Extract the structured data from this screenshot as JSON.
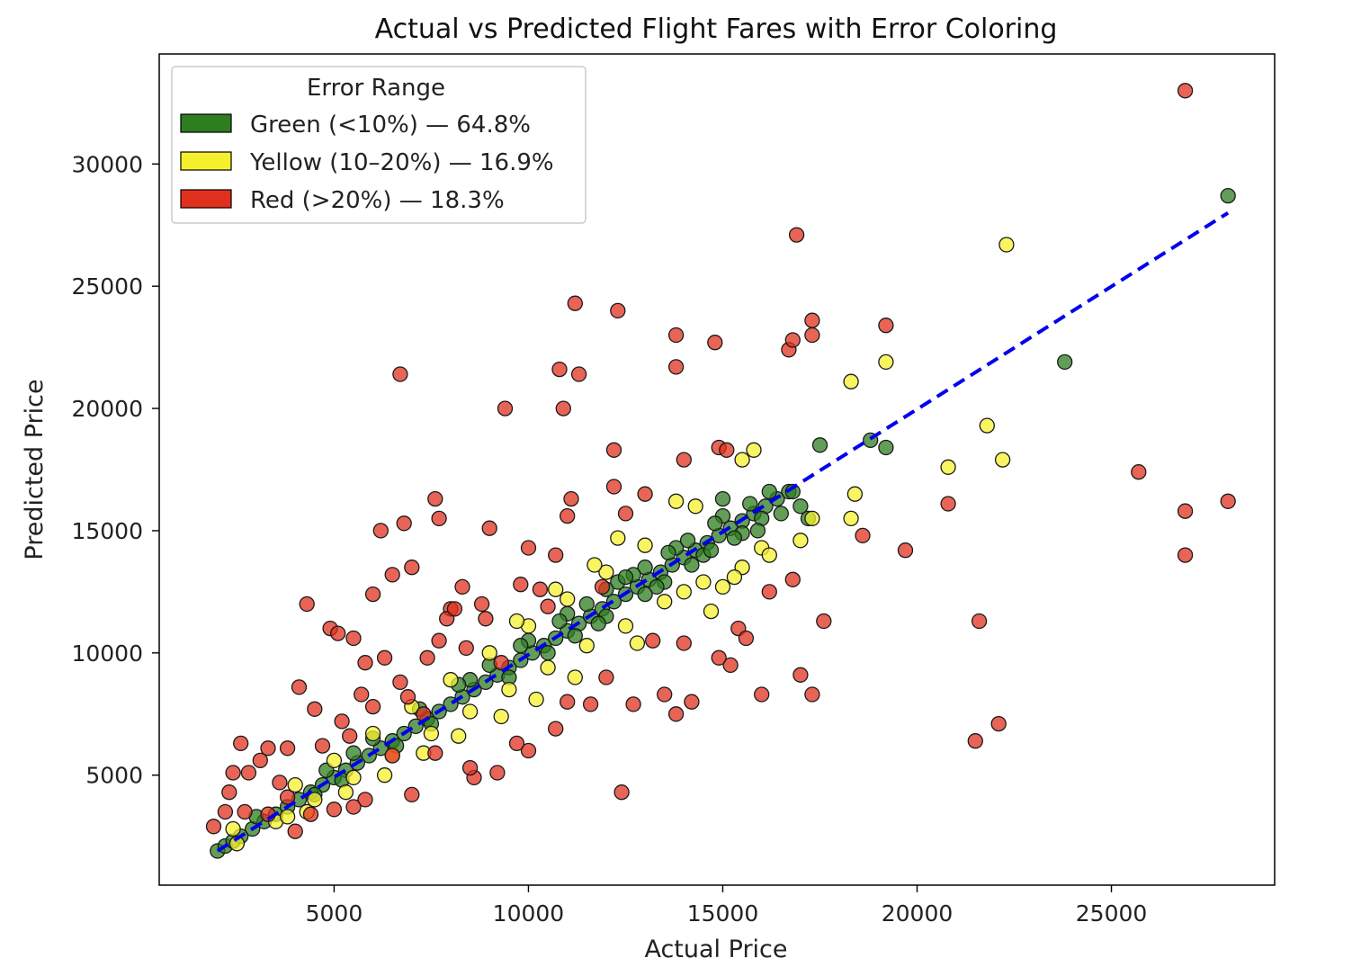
{
  "chart_data": {
    "type": "scatter",
    "title": "Actual vs Predicted Flight Fares with Error Coloring",
    "xlabel": "Actual Price",
    "ylabel": "Predicted Price",
    "xlim": [
      500,
      29200
    ],
    "ylim": [
      500,
      34500
    ],
    "xticks": [
      5000,
      10000,
      15000,
      20000,
      25000
    ],
    "yticks": [
      5000,
      10000,
      15000,
      20000,
      25000,
      30000
    ],
    "xtick_labels": [
      "5000",
      "10000",
      "15000",
      "20000",
      "25000"
    ],
    "ytick_labels": [
      "5000",
      "10000",
      "15000",
      "20000",
      "25000",
      "30000"
    ],
    "grid": false,
    "legend": {
      "title": "Error Range",
      "placement": "top-left",
      "entries": [
        {
          "label": "Green (<10%) — 64.8%",
          "color": "#2e7d1f"
        },
        {
          "label": "Yellow (10–20%) — 16.9%",
          "color": "#f5f02e"
        },
        {
          "label": "Red (>20%) — 18.3%",
          "color": "#e0301e"
        }
      ]
    },
    "reference_line": {
      "style": "dashed",
      "color": "#0000ee",
      "x": [
        2000,
        28000
      ],
      "y": [
        1900,
        28000
      ]
    },
    "series": [
      {
        "name": "Green (<10%) — 64.8%",
        "color": "#2e7d1f",
        "points": [
          [
            2000,
            1900
          ],
          [
            2200,
            2100
          ],
          [
            2400,
            2300
          ],
          [
            2600,
            2500
          ],
          [
            2900,
            2800
          ],
          [
            3200,
            3100
          ],
          [
            3500,
            3400
          ],
          [
            3800,
            3700
          ],
          [
            4100,
            4000
          ],
          [
            4400,
            4300
          ],
          [
            4700,
            4600
          ],
          [
            5000,
            4900
          ],
          [
            5300,
            5200
          ],
          [
            5600,
            5500
          ],
          [
            5900,
            5800
          ],
          [
            6200,
            6100
          ],
          [
            6500,
            6400
          ],
          [
            6800,
            6700
          ],
          [
            7100,
            7000
          ],
          [
            7400,
            7300
          ],
          [
            7700,
            7600
          ],
          [
            8000,
            7900
          ],
          [
            8300,
            8200
          ],
          [
            8600,
            8500
          ],
          [
            8900,
            8800
          ],
          [
            9200,
            9100
          ],
          [
            9500,
            9400
          ],
          [
            9800,
            9700
          ],
          [
            10100,
            10000
          ],
          [
            10400,
            10300
          ],
          [
            10700,
            10600
          ],
          [
            11000,
            10900
          ],
          [
            11300,
            11200
          ],
          [
            11600,
            11500
          ],
          [
            11900,
            11800
          ],
          [
            12200,
            12100
          ],
          [
            12500,
            12400
          ],
          [
            12800,
            12700
          ],
          [
            13100,
            13000
          ],
          [
            13400,
            13300
          ],
          [
            13700,
            13600
          ],
          [
            14000,
            13900
          ],
          [
            14300,
            14200
          ],
          [
            14600,
            14500
          ],
          [
            14900,
            14800
          ],
          [
            15200,
            15100
          ],
          [
            15500,
            15400
          ],
          [
            15800,
            15700
          ],
          [
            16100,
            16000
          ],
          [
            16400,
            16300
          ],
          [
            16700,
            16600
          ],
          [
            3000,
            3300
          ],
          [
            4500,
            4200
          ],
          [
            6000,
            6500
          ],
          [
            7500,
            7100
          ],
          [
            9000,
            9500
          ],
          [
            10500,
            10000
          ],
          [
            11500,
            12000
          ],
          [
            12000,
            11500
          ],
          [
            13000,
            13500
          ],
          [
            13500,
            12900
          ],
          [
            14500,
            14000
          ],
          [
            15000,
            15600
          ],
          [
            15500,
            14900
          ],
          [
            16000,
            15500
          ],
          [
            11000,
            11600
          ],
          [
            12300,
            12900
          ],
          [
            13800,
            14300
          ],
          [
            14200,
            13600
          ],
          [
            10000,
            10500
          ],
          [
            9500,
            9000
          ],
          [
            8500,
            8900
          ],
          [
            12700,
            13200
          ],
          [
            13300,
            12700
          ],
          [
            14800,
            15300
          ],
          [
            15300,
            14700
          ],
          [
            16200,
            16600
          ],
          [
            15700,
            16100
          ],
          [
            12500,
            13100
          ],
          [
            11200,
            10700
          ],
          [
            11800,
            11200
          ],
          [
            13600,
            14100
          ],
          [
            14100,
            14600
          ],
          [
            14700,
            14200
          ],
          [
            16500,
            15700
          ],
          [
            17000,
            16000
          ],
          [
            17200,
            15500
          ],
          [
            15000,
            16300
          ],
          [
            13000,
            12400
          ],
          [
            12000,
            12600
          ],
          [
            10800,
            11300
          ],
          [
            9800,
            10300
          ],
          [
            8200,
            8700
          ],
          [
            7200,
            7700
          ],
          [
            6600,
            6200
          ],
          [
            5500,
            5900
          ],
          [
            5200,
            4800
          ],
          [
            4800,
            5200
          ],
          [
            16800,
            16600
          ],
          [
            15900,
            15000
          ],
          [
            17500,
            18500
          ],
          [
            19200,
            18400
          ],
          [
            18800,
            18700
          ],
          [
            23800,
            21900
          ],
          [
            28000,
            28700
          ]
        ]
      },
      {
        "name": "Yellow (10–20%) — 16.9%",
        "color": "#f5f02e",
        "points": [
          [
            2500,
            2200
          ],
          [
            2400,
            2800
          ],
          [
            3500,
            3100
          ],
          [
            4000,
            4600
          ],
          [
            4500,
            4000
          ],
          [
            5000,
            5600
          ],
          [
            5500,
            4900
          ],
          [
            6000,
            6700
          ],
          [
            6500,
            5800
          ],
          [
            7000,
            7800
          ],
          [
            7500,
            6700
          ],
          [
            8000,
            8900
          ],
          [
            8500,
            7600
          ],
          [
            9000,
            10000
          ],
          [
            9500,
            8500
          ],
          [
            10000,
            11100
          ],
          [
            10500,
            9400
          ],
          [
            11000,
            12200
          ],
          [
            11500,
            10300
          ],
          [
            12000,
            13300
          ],
          [
            12500,
            11100
          ],
          [
            13000,
            14400
          ],
          [
            13500,
            12100
          ],
          [
            14000,
            12500
          ],
          [
            14500,
            12900
          ],
          [
            15000,
            12700
          ],
          [
            15500,
            13500
          ],
          [
            16000,
            14300
          ],
          [
            13800,
            16200
          ],
          [
            14300,
            16000
          ],
          [
            15500,
            17900
          ],
          [
            15800,
            18300
          ],
          [
            17000,
            14600
          ],
          [
            17300,
            15500
          ],
          [
            18300,
            15500
          ],
          [
            18400,
            16500
          ],
          [
            18300,
            21100
          ],
          [
            19200,
            21900
          ],
          [
            20800,
            17600
          ],
          [
            21800,
            19300
          ],
          [
            22200,
            17900
          ],
          [
            22300,
            26700
          ],
          [
            12800,
            10400
          ],
          [
            11200,
            9000
          ],
          [
            10200,
            8100
          ],
          [
            9300,
            7400
          ],
          [
            8200,
            6600
          ],
          [
            7300,
            5900
          ],
          [
            6300,
            5000
          ],
          [
            5300,
            4300
          ],
          [
            4300,
            3500
          ],
          [
            3800,
            3300
          ],
          [
            15300,
            13100
          ],
          [
            14700,
            11700
          ],
          [
            16200,
            14000
          ],
          [
            12300,
            14700
          ],
          [
            11700,
            13600
          ],
          [
            10700,
            12600
          ],
          [
            9700,
            11300
          ]
        ]
      },
      {
        "name": "Red (>20%) — 18.3%",
        "color": "#e0301e",
        "points": [
          [
            1900,
            2900
          ],
          [
            2400,
            5100
          ],
          [
            2600,
            6300
          ],
          [
            2300,
            4300
          ],
          [
            2800,
            5100
          ],
          [
            3300,
            6100
          ],
          [
            3800,
            6100
          ],
          [
            4100,
            8600
          ],
          [
            4300,
            12000
          ],
          [
            4900,
            11000
          ],
          [
            5100,
            10800
          ],
          [
            5500,
            10600
          ],
          [
            6000,
            12400
          ],
          [
            6200,
            15000
          ],
          [
            6500,
            13200
          ],
          [
            6800,
            15300
          ],
          [
            7000,
            13500
          ],
          [
            6700,
            21400
          ],
          [
            7600,
            16300
          ],
          [
            7700,
            15500
          ],
          [
            8000,
            11800
          ],
          [
            8300,
            12700
          ],
          [
            8800,
            12000
          ],
          [
            9000,
            15100
          ],
          [
            9400,
            20000
          ],
          [
            9800,
            12800
          ],
          [
            10000,
            14300
          ],
          [
            10300,
            12600
          ],
          [
            10700,
            14000
          ],
          [
            10800,
            21600
          ],
          [
            10900,
            20000
          ],
          [
            11000,
            15600
          ],
          [
            11100,
            16300
          ],
          [
            11300,
            21400
          ],
          [
            11200,
            24300
          ],
          [
            12200,
            18300
          ],
          [
            12300,
            24000
          ],
          [
            12200,
            16800
          ],
          [
            13000,
            16500
          ],
          [
            13800,
            23000
          ],
          [
            13800,
            21700
          ],
          [
            14000,
            17900
          ],
          [
            14800,
            22700
          ],
          [
            14900,
            18400
          ],
          [
            15100,
            18300
          ],
          [
            16700,
            22400
          ],
          [
            16800,
            22800
          ],
          [
            17300,
            23000
          ],
          [
            17300,
            23600
          ],
          [
            16900,
            27100
          ],
          [
            19200,
            23400
          ],
          [
            18600,
            14800
          ],
          [
            19700,
            14200
          ],
          [
            20800,
            16100
          ],
          [
            25700,
            17400
          ],
          [
            26900,
            15800
          ],
          [
            26900,
            14000
          ],
          [
            28000,
            16200
          ],
          [
            26900,
            33000
          ],
          [
            21600,
            11300
          ],
          [
            21500,
            6400
          ],
          [
            22100,
            7100
          ],
          [
            17000,
            9100
          ],
          [
            17300,
            8300
          ],
          [
            17600,
            11300
          ],
          [
            16800,
            13000
          ],
          [
            16000,
            8300
          ],
          [
            15200,
            9500
          ],
          [
            14200,
            8000
          ],
          [
            13800,
            7500
          ],
          [
            13500,
            8300
          ],
          [
            12700,
            7900
          ],
          [
            12400,
            4300
          ],
          [
            12000,
            9000
          ],
          [
            11600,
            7900
          ],
          [
            11000,
            8000
          ],
          [
            10700,
            6900
          ],
          [
            10000,
            6000
          ],
          [
            9700,
            6300
          ],
          [
            9200,
            5100
          ],
          [
            8600,
            4900
          ],
          [
            8500,
            5300
          ],
          [
            7600,
            5900
          ],
          [
            7000,
            4200
          ],
          [
            6500,
            5800
          ],
          [
            5800,
            4000
          ],
          [
            5500,
            3700
          ],
          [
            5000,
            3600
          ],
          [
            4400,
            3400
          ],
          [
            3800,
            4100
          ],
          [
            4000,
            2700
          ],
          [
            3300,
            3400
          ],
          [
            2700,
            3500
          ],
          [
            2200,
            3500
          ],
          [
            4500,
            7700
          ],
          [
            5200,
            7200
          ],
          [
            5800,
            9600
          ],
          [
            6300,
            9800
          ],
          [
            7400,
            9800
          ],
          [
            7900,
            11400
          ],
          [
            8400,
            10200
          ],
          [
            8900,
            11400
          ],
          [
            9300,
            9600
          ],
          [
            10500,
            11900
          ],
          [
            11900,
            12700
          ],
          [
            12500,
            15700
          ],
          [
            13200,
            10500
          ],
          [
            14000,
            10400
          ],
          [
            14900,
            9800
          ],
          [
            15400,
            11000
          ],
          [
            15600,
            10600
          ],
          [
            16200,
            12500
          ],
          [
            6900,
            8200
          ],
          [
            7300,
            7500
          ],
          [
            5700,
            8300
          ],
          [
            4700,
            6200
          ],
          [
            3600,
            4700
          ],
          [
            3100,
            5600
          ],
          [
            5400,
            6600
          ],
          [
            6000,
            7800
          ],
          [
            6700,
            8800
          ],
          [
            7700,
            10500
          ],
          [
            8100,
            11800
          ]
        ]
      }
    ]
  }
}
